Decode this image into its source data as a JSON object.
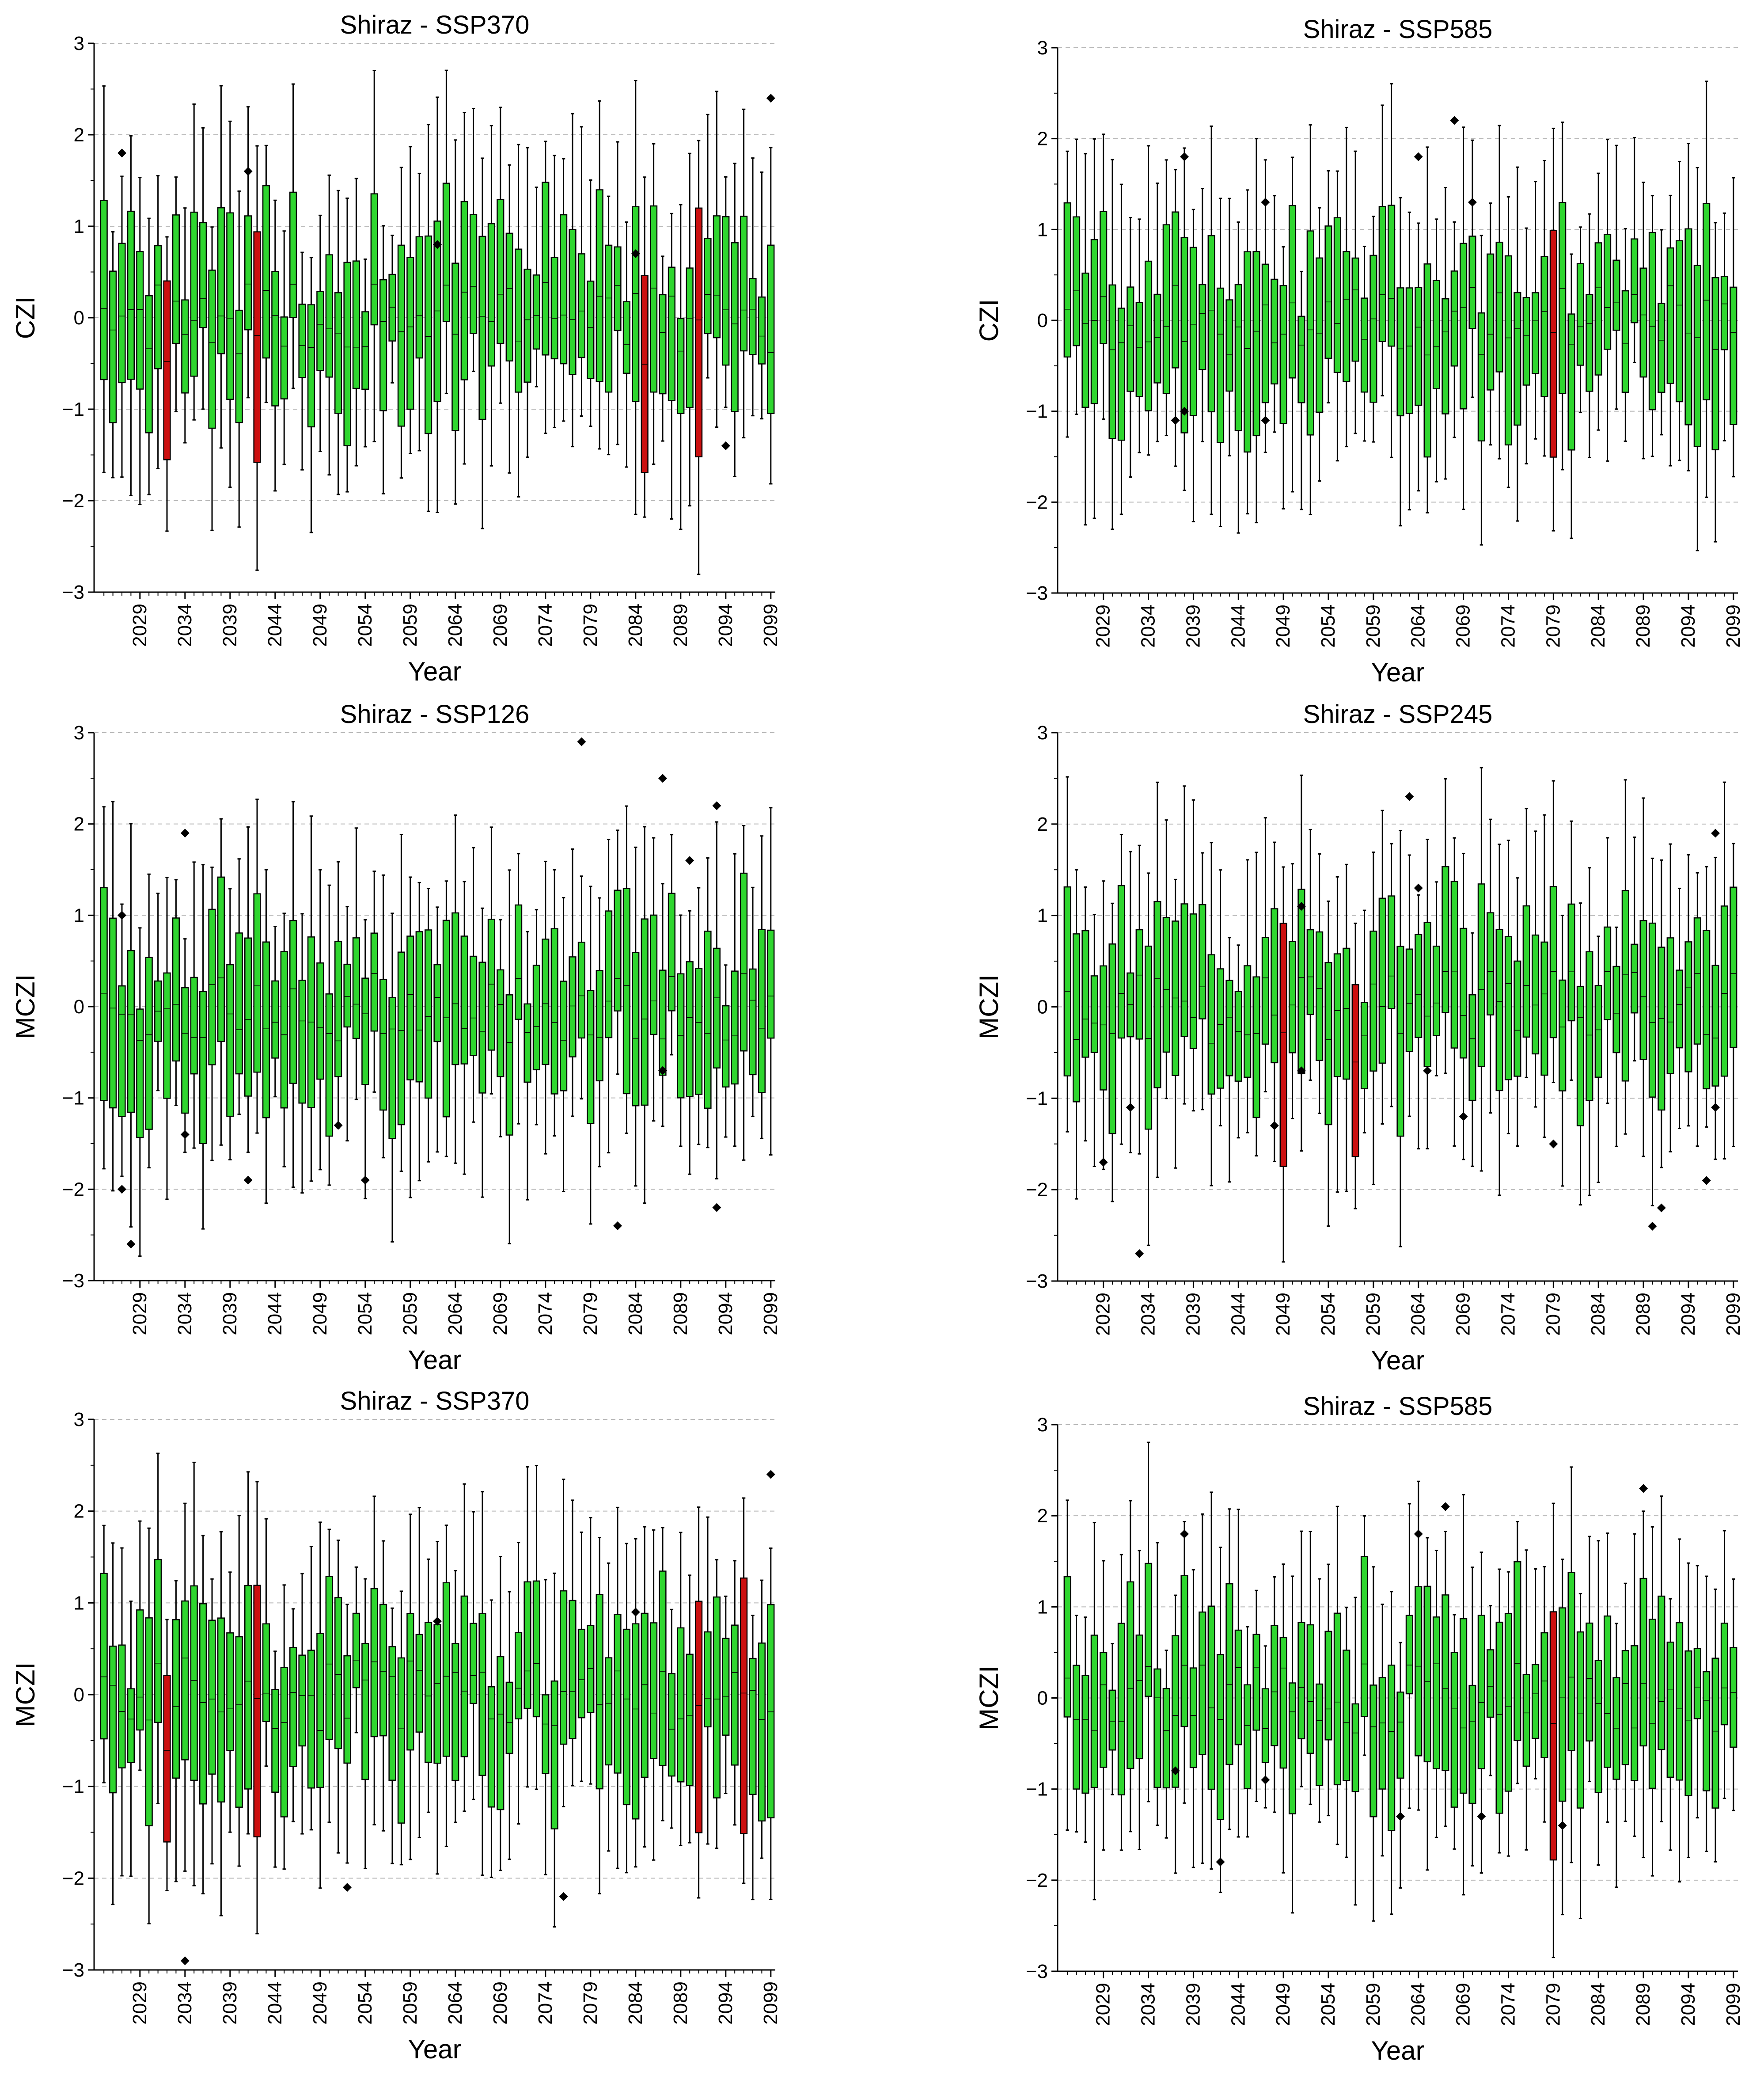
{
  "figure": {
    "colors": {
      "normal_box": "#2fd62f",
      "negative_box": "#cc1010",
      "outlier": "#000000",
      "grid": "#b8b8b8"
    }
  },
  "chart_data": [
    {
      "type": "box",
      "title": "Shiraz - SSP370",
      "xlabel": "Year",
      "ylabel": "CZI",
      "ylim": [
        -3,
        3
      ],
      "yticks": [
        -3,
        -2,
        -1,
        0,
        1,
        2,
        3
      ],
      "xticks": [
        2029,
        2034,
        2039,
        2044,
        2049,
        2054,
        2059,
        2064,
        2069,
        2074,
        2079,
        2084,
        2089,
        2094,
        2099
      ],
      "x_start": 2025,
      "x_end": 2099,
      "grid": "horizontal-dashed",
      "negative_years": [
        2032,
        2042,
        2085,
        2091
      ],
      "outliers": [
        [
          2027,
          1.8
        ],
        [
          2041,
          1.6
        ],
        [
          2062,
          0.8
        ],
        [
          2084,
          0.7
        ],
        [
          2094,
          -1.4
        ],
        [
          2099,
          2.4
        ]
      ]
    },
    {
      "type": "box",
      "title": "Shiraz - SSP585",
      "xlabel": "Year",
      "ylabel": "CZI",
      "ylim": [
        -3,
        3
      ],
      "yticks": [
        -3,
        -2,
        -1,
        0,
        1,
        2,
        3
      ],
      "xticks": [
        2029,
        2034,
        2039,
        2044,
        2049,
        2054,
        2059,
        2064,
        2069,
        2074,
        2079,
        2084,
        2089,
        2094,
        2099
      ],
      "x_start": 2025,
      "x_end": 2099,
      "grid": "horizontal-dashed",
      "negative_years": [
        2079
      ],
      "outliers": [
        [
          2038,
          1.8
        ],
        [
          2037,
          -1.1
        ],
        [
          2038,
          -1.0
        ],
        [
          2047,
          1.3
        ],
        [
          2047,
          -1.1
        ],
        [
          2064,
          1.8
        ],
        [
          2068,
          2.2
        ],
        [
          2070,
          1.3
        ]
      ]
    },
    {
      "type": "box",
      "title": "Shiraz - SSP126",
      "xlabel": "Year",
      "ylabel": "MCZI",
      "ylim": [
        -3,
        3
      ],
      "yticks": [
        -3,
        -2,
        -1,
        0,
        1,
        2,
        3
      ],
      "xticks": [
        2029,
        2034,
        2039,
        2044,
        2049,
        2054,
        2059,
        2064,
        2069,
        2074,
        2079,
        2084,
        2089,
        2094,
        2099
      ],
      "x_start": 2025,
      "x_end": 2099,
      "grid": "horizontal-dashed",
      "negative_years": [],
      "outliers": [
        [
          2027,
          1.0
        ],
        [
          2027,
          -2.0
        ],
        [
          2028,
          -2.6
        ],
        [
          2034,
          1.9
        ],
        [
          2034,
          -1.4
        ],
        [
          2041,
          -1.9
        ],
        [
          2051,
          -1.3
        ],
        [
          2054,
          -1.9
        ],
        [
          2078,
          2.9
        ],
        [
          2082,
          -2.4
        ],
        [
          2087,
          2.5
        ],
        [
          2087,
          -0.7
        ],
        [
          2090,
          1.6
        ],
        [
          2093,
          2.2
        ],
        [
          2093,
          -2.2
        ]
      ]
    },
    {
      "type": "box",
      "title": "Shiraz - SSP245",
      "xlabel": "Year",
      "ylabel": "MCZI",
      "ylim": [
        -3,
        3
      ],
      "yticks": [
        -3,
        -2,
        -1,
        0,
        1,
        2,
        3
      ],
      "xticks": [
        2029,
        2034,
        2039,
        2044,
        2049,
        2054,
        2059,
        2064,
        2069,
        2074,
        2079,
        2084,
        2089,
        2094,
        2099
      ],
      "x_start": 2025,
      "x_end": 2099,
      "grid": "horizontal-dashed",
      "negative_years": [
        2049,
        2057
      ],
      "outliers": [
        [
          2029,
          -1.7
        ],
        [
          2032,
          -1.1
        ],
        [
          2033,
          -2.7
        ],
        [
          2048,
          -1.3
        ],
        [
          2051,
          1.1
        ],
        [
          2051,
          -0.7
        ],
        [
          2063,
          2.3
        ],
        [
          2064,
          1.3
        ],
        [
          2065,
          -0.7
        ],
        [
          2069,
          -1.2
        ],
        [
          2079,
          -1.5
        ],
        [
          2090,
          -2.4
        ],
        [
          2091,
          -2.2
        ],
        [
          2096,
          -1.9
        ],
        [
          2097,
          1.9
        ],
        [
          2097,
          -1.1
        ]
      ]
    },
    {
      "type": "box",
      "title": "Shiraz - SSP370",
      "xlabel": "Year",
      "ylabel": "MCZI",
      "ylim": [
        -3,
        3
      ],
      "yticks": [
        -3,
        -2,
        -1,
        0,
        1,
        2,
        3
      ],
      "xticks": [
        2029,
        2034,
        2039,
        2044,
        2049,
        2054,
        2059,
        2064,
        2069,
        2074,
        2079,
        2084,
        2089,
        2094,
        2099
      ],
      "x_start": 2025,
      "x_end": 2099,
      "grid": "horizontal-dashed",
      "negative_years": [
        2032,
        2042,
        2091,
        2096
      ],
      "outliers": [
        [
          2034,
          -2.9
        ],
        [
          2052,
          -2.1
        ],
        [
          2062,
          0.8
        ],
        [
          2076,
          -2.2
        ],
        [
          2084,
          0.9
        ],
        [
          2099,
          2.4
        ]
      ]
    },
    {
      "type": "box",
      "title": "Shiraz - SSP585",
      "xlabel": "Year",
      "ylabel": "MCZI",
      "ylim": [
        -3,
        3
      ],
      "yticks": [
        -3,
        -2,
        -1,
        0,
        1,
        2,
        3
      ],
      "xticks": [
        2029,
        2034,
        2039,
        2044,
        2049,
        2054,
        2059,
        2064,
        2069,
        2074,
        2079,
        2084,
        2089,
        2094,
        2099
      ],
      "x_start": 2025,
      "x_end": 2099,
      "grid": "horizontal-dashed",
      "negative_years": [
        2079
      ],
      "outliers": [
        [
          2038,
          1.8
        ],
        [
          2037,
          -0.8
        ],
        [
          2042,
          -1.8
        ],
        [
          2047,
          -0.9
        ],
        [
          2062,
          -1.3
        ],
        [
          2064,
          1.8
        ],
        [
          2067,
          2.1
        ],
        [
          2071,
          -1.3
        ],
        [
          2080,
          -1.4
        ],
        [
          2089,
          2.3
        ]
      ]
    }
  ]
}
